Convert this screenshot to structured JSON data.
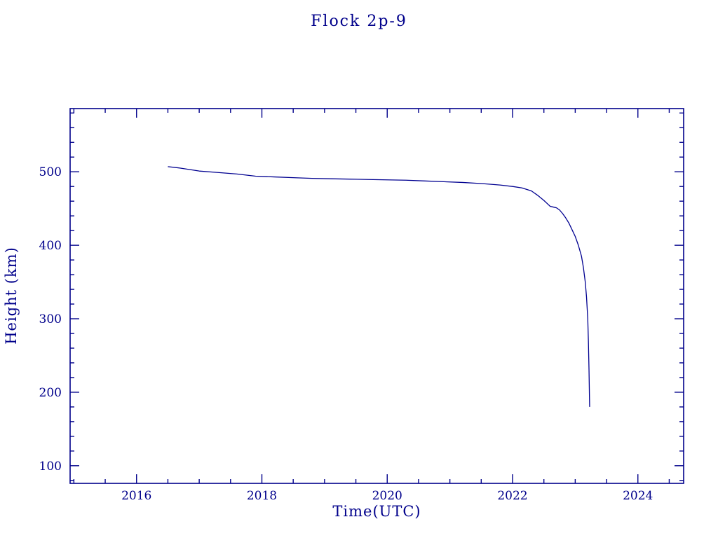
{
  "chart_data": {
    "type": "line",
    "title": "Flock 2p-9",
    "xlabel": "Time(UTC)",
    "ylabel": "Height (km)",
    "xlim": [
      2014.94,
      2024.73
    ],
    "ylim": [
      76,
      586
    ],
    "xticks": [
      2016,
      2018,
      2020,
      2022,
      2024
    ],
    "yticks": [
      100,
      200,
      300,
      400,
      500
    ],
    "x_minor_step": 0.5,
    "y_minor_step": 20,
    "grid": false,
    "legend": "none",
    "axis_color": "#00008b",
    "line_color": "#000090",
    "series": [
      {
        "name": "Flock 2p-9",
        "x": [
          2016.5,
          2016.7,
          2017.0,
          2017.3,
          2017.6,
          2017.9,
          2018.2,
          2018.5,
          2018.8,
          2019.1,
          2019.4,
          2019.7,
          2020.0,
          2020.3,
          2020.6,
          2020.9,
          2021.2,
          2021.5,
          2021.8,
          2022.0,
          2022.15,
          2022.3,
          2022.4,
          2022.5,
          2022.55,
          2022.6,
          2022.65,
          2022.7,
          2022.75,
          2022.8,
          2022.85,
          2022.9,
          2022.95,
          2023.0,
          2023.05,
          2023.1,
          2023.13,
          2023.16,
          2023.18,
          2023.2,
          2023.21,
          2023.22,
          2023.23
        ],
        "y": [
          507,
          505,
          501,
          499,
          497,
          494,
          493,
          492,
          491,
          490.5,
          490,
          489.5,
          489,
          488.5,
          487.5,
          486.5,
          485.5,
          484,
          482,
          480,
          478,
          474,
          468,
          461,
          457,
          453,
          452,
          451,
          448,
          443,
          437,
          430,
          421,
          412,
          400,
          385,
          370,
          350,
          330,
          300,
          270,
          230,
          180
        ]
      }
    ]
  }
}
